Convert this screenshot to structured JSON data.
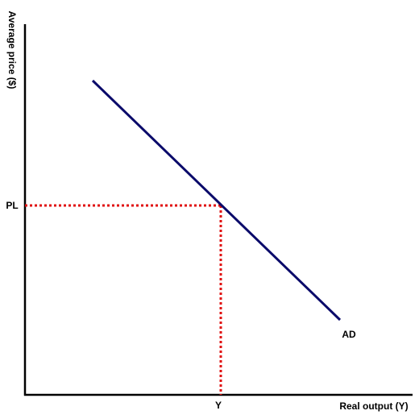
{
  "y_axis_label": "Average price ($)",
  "x_axis_label": "Real output (Y)",
  "curve_label": "AD",
  "price_level_label": "PL",
  "output_label": "Y"
}
